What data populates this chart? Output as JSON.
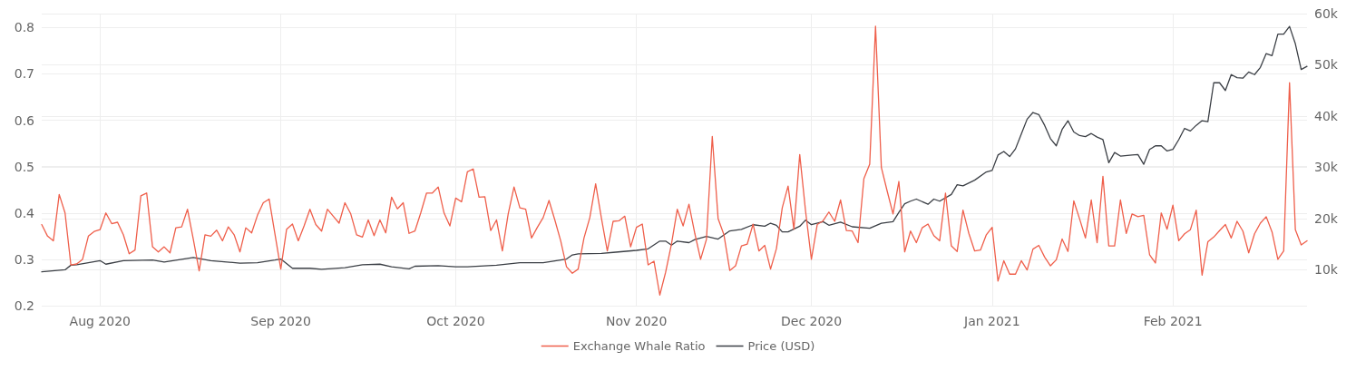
{
  "chart_data": {
    "type": "line",
    "xlim": [
      "2020-07-22",
      "2021-02-24"
    ],
    "xticks": [
      {
        "value": "2020-08-01",
        "label": "Aug 2020"
      },
      {
        "value": "2020-09-01",
        "label": "Sep 2020"
      },
      {
        "value": "2020-10-01",
        "label": "Oct 2020"
      },
      {
        "value": "2020-11-01",
        "label": "Nov 2020"
      },
      {
        "value": "2020-12-01",
        "label": "Dec 2020"
      },
      {
        "value": "2021-01-01",
        "label": "Jan 2021"
      },
      {
        "value": "2021-02-01",
        "label": "Feb 2021"
      }
    ],
    "ylim": [
      0.2,
      0.83
    ],
    "yticks": [
      0.2,
      0.3,
      0.4,
      0.5,
      0.6,
      0.7,
      0.8
    ],
    "y2lim": [
      3000,
      60000
    ],
    "y2ticks": [
      {
        "value": 10000,
        "label": "10k"
      },
      {
        "value": 20000,
        "label": "20k"
      },
      {
        "value": 30000,
        "label": "30k"
      },
      {
        "value": 40000,
        "label": "40k"
      },
      {
        "value": 50000,
        "label": "50k"
      },
      {
        "value": 60000,
        "label": "60k"
      }
    ],
    "grid": true,
    "legend": "bottom",
    "marker": "none",
    "line_style": "solid",
    "series": [
      {
        "name": "Exchange Whale Ratio",
        "color": "#ef5f4b",
        "x": [
          "2020-07-22",
          "2020-07-23",
          "2020-07-24",
          "2020-07-25",
          "2020-07-26",
          "2020-07-27",
          "2020-07-28",
          "2020-07-29",
          "2020-07-30",
          "2020-07-31",
          "2020-08-01",
          "2020-08-02",
          "2020-08-03",
          "2020-08-04",
          "2020-08-05",
          "2020-08-06",
          "2020-08-07",
          "2020-08-08",
          "2020-08-09",
          "2020-08-10",
          "2020-08-11",
          "2020-08-12",
          "2020-08-13",
          "2020-08-14",
          "2020-08-15",
          "2020-08-16",
          "2020-08-17",
          "2020-08-18",
          "2020-08-19",
          "2020-08-20",
          "2020-08-21",
          "2020-08-22",
          "2020-08-23",
          "2020-08-24",
          "2020-08-25",
          "2020-08-26",
          "2020-08-27",
          "2020-08-28",
          "2020-08-29",
          "2020-08-30",
          "2020-09-01",
          "2020-09-02",
          "2020-09-03",
          "2020-09-04",
          "2020-09-05",
          "2020-09-06",
          "2020-09-07",
          "2020-09-08",
          "2020-09-09",
          "2020-09-10",
          "2020-09-11",
          "2020-09-12",
          "2020-09-13",
          "2020-09-14",
          "2020-09-15",
          "2020-09-16",
          "2020-09-17",
          "2020-09-18",
          "2020-09-19",
          "2020-09-20",
          "2020-09-21",
          "2020-09-22",
          "2020-09-23",
          "2020-09-24",
          "2020-09-25",
          "2020-09-26",
          "2020-09-27",
          "2020-09-28",
          "2020-09-29",
          "2020-09-30",
          "2020-10-01",
          "2020-10-02",
          "2020-10-03",
          "2020-10-04",
          "2020-10-05",
          "2020-10-06",
          "2020-10-07",
          "2020-10-08",
          "2020-10-09",
          "2020-10-10",
          "2020-10-11",
          "2020-10-12",
          "2020-10-13",
          "2020-10-14",
          "2020-10-15",
          "2020-10-16",
          "2020-10-17",
          "2020-10-18",
          "2020-10-19",
          "2020-10-20",
          "2020-10-21",
          "2020-10-22",
          "2020-10-23",
          "2020-10-24",
          "2020-10-25",
          "2020-10-26",
          "2020-10-27",
          "2020-10-28",
          "2020-10-29",
          "2020-10-30",
          "2020-10-31",
          "2020-11-01",
          "2020-11-02",
          "2020-11-03",
          "2020-11-04",
          "2020-11-05",
          "2020-11-06",
          "2020-11-07",
          "2020-11-08",
          "2020-11-09",
          "2020-11-10",
          "2020-11-11",
          "2020-11-12",
          "2020-11-13",
          "2020-11-14",
          "2020-11-15",
          "2020-11-16",
          "2020-11-17",
          "2020-11-18",
          "2020-11-19",
          "2020-11-20",
          "2020-11-21",
          "2020-11-22",
          "2020-11-23",
          "2020-11-24",
          "2020-11-25",
          "2020-11-26",
          "2020-11-27",
          "2020-11-28",
          "2020-11-29",
          "2020-11-30",
          "2020-12-01",
          "2020-12-02",
          "2020-12-03",
          "2020-12-04",
          "2020-12-05",
          "2020-12-06",
          "2020-12-07",
          "2020-12-08",
          "2020-12-09",
          "2020-12-10",
          "2020-12-11",
          "2020-12-12",
          "2020-12-13",
          "2020-12-14",
          "2020-12-15",
          "2020-12-16",
          "2020-12-17",
          "2020-12-18",
          "2020-12-19",
          "2020-12-20",
          "2020-12-21",
          "2020-12-22",
          "2020-12-23",
          "2020-12-24",
          "2020-12-25",
          "2020-12-26",
          "2020-12-27",
          "2020-12-28",
          "2020-12-29",
          "2020-12-30",
          "2020-12-31",
          "2021-01-01",
          "2021-01-02",
          "2021-01-03",
          "2021-01-04",
          "2021-01-05",
          "2021-01-06",
          "2021-01-07",
          "2021-01-08",
          "2021-01-09",
          "2021-01-10",
          "2021-01-11",
          "2021-01-12",
          "2021-01-13",
          "2021-01-14",
          "2021-01-15",
          "2021-01-16",
          "2021-01-17",
          "2021-01-18",
          "2021-01-19",
          "2021-01-20",
          "2021-01-21",
          "2021-01-22",
          "2021-01-23",
          "2021-01-24",
          "2021-01-25",
          "2021-01-26",
          "2021-01-27",
          "2021-01-28",
          "2021-01-29",
          "2021-01-30",
          "2021-01-31",
          "2021-02-01",
          "2021-02-02",
          "2021-02-03",
          "2021-02-04",
          "2021-02-05",
          "2021-02-06",
          "2021-02-07",
          "2021-02-08",
          "2021-02-09",
          "2021-02-10",
          "2021-02-11",
          "2021-02-12",
          "2021-02-13",
          "2021-02-14",
          "2021-02-15",
          "2021-02-16",
          "2021-02-17",
          "2021-02-18",
          "2021-02-19",
          "2021-02-20",
          "2021-02-21",
          "2021-02-22",
          "2021-02-23",
          "2021-02-24"
        ],
        "values": [
          0.375,
          0.35,
          0.34,
          0.44,
          0.4,
          0.288,
          0.29,
          0.3,
          0.35,
          0.36,
          0.364,
          0.4,
          0.377,
          0.38,
          0.353,
          0.312,
          0.32,
          0.437,
          0.443,
          0.327,
          0.316,
          0.327,
          0.314,
          0.368,
          0.37,
          0.408,
          0.343,
          0.275,
          0.353,
          0.35,
          0.363,
          0.34,
          0.37,
          0.353,
          0.316,
          0.368,
          0.357,
          0.395,
          0.422,
          0.43,
          0.279,
          0.365,
          0.376,
          0.34,
          0.372,
          0.408,
          0.375,
          0.361,
          0.408,
          0.393,
          0.378,
          0.422,
          0.398,
          0.353,
          0.348,
          0.385,
          0.351,
          0.385,
          0.357,
          0.434,
          0.409,
          0.422,
          0.356,
          0.361,
          0.4,
          0.443,
          0.443,
          0.456,
          0.4,
          0.372,
          0.432,
          0.424,
          0.489,
          0.495,
          0.434,
          0.435,
          0.362,
          0.385,
          0.318,
          0.398,
          0.456,
          0.411,
          0.408,
          0.346,
          0.369,
          0.39,
          0.427,
          0.385,
          0.34,
          0.284,
          0.27,
          0.279,
          0.346,
          0.39,
          0.463,
          0.388,
          0.318,
          0.382,
          0.383,
          0.393,
          0.327,
          0.369,
          0.376,
          0.288,
          0.296,
          0.223,
          0.272,
          0.333,
          0.408,
          0.372,
          0.419,
          0.356,
          0.3,
          0.343,
          0.565,
          0.388,
          0.353,
          0.276,
          0.286,
          0.329,
          0.333,
          0.376,
          0.318,
          0.33,
          0.279,
          0.323,
          0.411,
          0.458,
          0.365,
          0.526,
          0.404,
          0.3,
          0.375,
          0.383,
          0.402,
          0.382,
          0.428,
          0.362,
          0.361,
          0.336,
          0.474,
          0.505,
          0.803,
          0.498,
          0.447,
          0.398,
          0.468,
          0.316,
          0.361,
          0.336,
          0.368,
          0.376,
          0.351,
          0.34,
          0.443,
          0.329,
          0.317,
          0.406,
          0.356,
          0.318,
          0.32,
          0.353,
          0.369,
          0.253,
          0.297,
          0.268,
          0.268,
          0.297,
          0.277,
          0.322,
          0.33,
          0.305,
          0.286,
          0.299,
          0.344,
          0.317,
          0.426,
          0.387,
          0.346,
          0.428,
          0.336,
          0.479,
          0.329,
          0.329,
          0.428,
          0.356,
          0.398,
          0.392,
          0.395,
          0.31,
          0.292,
          0.4,
          0.365,
          0.417,
          0.34,
          0.355,
          0.364,
          0.406,
          0.266,
          0.338,
          0.348,
          0.362,
          0.375,
          0.346,
          0.382,
          0.361,
          0.314,
          0.355,
          0.378,
          0.392,
          0.359,
          0.3,
          0.318,
          0.681,
          0.364,
          0.331,
          0.34
        ]
      },
      {
        "name": "Price (USD)",
        "color": "#3b3f45",
        "axis": "y2",
        "x": [
          "2020-07-22",
          "2020-07-26",
          "2020-07-27",
          "2020-07-28",
          "2020-08-01",
          "2020-08-02",
          "2020-08-05",
          "2020-08-10",
          "2020-08-12",
          "2020-08-17",
          "2020-08-20",
          "2020-08-25",
          "2020-08-28",
          "2020-08-31",
          "2020-09-01",
          "2020-09-03",
          "2020-09-06",
          "2020-09-08",
          "2020-09-12",
          "2020-09-15",
          "2020-09-18",
          "2020-09-20",
          "2020-09-23",
          "2020-09-24",
          "2020-09-28",
          "2020-10-01",
          "2020-10-03",
          "2020-10-08",
          "2020-10-12",
          "2020-10-16",
          "2020-10-20",
          "2020-10-21",
          "2020-10-22",
          "2020-10-26",
          "2020-10-28",
          "2020-11-01",
          "2020-11-03",
          "2020-11-05",
          "2020-11-06",
          "2020-11-07",
          "2020-11-08",
          "2020-11-10",
          "2020-11-11",
          "2020-11-13",
          "2020-11-15",
          "2020-11-17",
          "2020-11-19",
          "2020-11-21",
          "2020-11-23",
          "2020-11-24",
          "2020-11-25",
          "2020-11-26",
          "2020-11-27",
          "2020-11-29",
          "2020-11-30",
          "2020-12-01",
          "2020-12-03",
          "2020-12-04",
          "2020-12-06",
          "2020-12-08",
          "2020-12-11",
          "2020-12-13",
          "2020-12-15",
          "2020-12-16",
          "2020-12-17",
          "2020-12-18",
          "2020-12-19",
          "2020-12-21",
          "2020-12-22",
          "2020-12-23",
          "2020-12-25",
          "2020-12-26",
          "2020-12-27",
          "2020-12-29",
          "2020-12-31",
          "2021-01-01",
          "2021-01-02",
          "2021-01-03",
          "2021-01-04",
          "2021-01-05",
          "2021-01-06",
          "2021-01-07",
          "2021-01-08",
          "2021-01-09",
          "2021-01-10",
          "2021-01-11",
          "2021-01-12",
          "2021-01-13",
          "2021-01-14",
          "2021-01-15",
          "2021-01-16",
          "2021-01-17",
          "2021-01-18",
          "2021-01-19",
          "2021-01-20",
          "2021-01-21",
          "2021-01-22",
          "2021-01-23",
          "2021-01-25",
          "2021-01-26",
          "2021-01-27",
          "2021-01-28",
          "2021-01-29",
          "2021-01-30",
          "2021-01-31",
          "2021-02-01",
          "2021-02-02",
          "2021-02-03",
          "2021-02-04",
          "2021-02-05",
          "2021-02-06",
          "2021-02-07",
          "2021-02-08",
          "2021-02-09",
          "2021-02-10",
          "2021-02-11",
          "2021-02-12",
          "2021-02-13",
          "2021-02-14",
          "2021-02-15",
          "2021-02-16",
          "2021-02-17",
          "2021-02-18",
          "2021-02-19",
          "2021-02-20",
          "2021-02-21",
          "2021-02-22",
          "2021-02-23",
          "2021-02-24"
        ],
        "values": [
          9600,
          10000,
          10900,
          11000,
          11800,
          11100,
          11800,
          11900,
          11500,
          12400,
          11800,
          11300,
          11400,
          11900,
          12100,
          10300,
          10300,
          10100,
          10400,
          11000,
          11100,
          10600,
          10200,
          10700,
          10800,
          10600,
          10600,
          10900,
          11400,
          11400,
          12100,
          12900,
          13100,
          13200,
          13400,
          13800,
          14100,
          15600,
          15600,
          14800,
          15600,
          15300,
          15900,
          16500,
          16000,
          17600,
          17900,
          18800,
          18500,
          19100,
          18700,
          17400,
          17400,
          18500,
          19700,
          18800,
          19400,
          18700,
          19300,
          18400,
          18100,
          19100,
          19400,
          21200,
          22900,
          23400,
          23800,
          22800,
          23800,
          23400,
          24700,
          26600,
          26400,
          27500,
          29100,
          29400,
          32400,
          33100,
          32100,
          33600,
          36500,
          39400,
          40700,
          40300,
          38200,
          35600,
          34200,
          37400,
          39100,
          36900,
          36200,
          36000,
          36600,
          35900,
          35400,
          30900,
          32900,
          32200,
          32400,
          32500,
          30600,
          33500,
          34200,
          34200,
          33200,
          33500,
          35400,
          37600,
          37100,
          38200,
          39100,
          38900,
          46500,
          46500,
          45000,
          48100,
          47500,
          47400,
          48600,
          48100,
          49500,
          52200,
          51800,
          56000,
          56000,
          57500,
          54100,
          49100,
          49700
        ]
      }
    ]
  }
}
